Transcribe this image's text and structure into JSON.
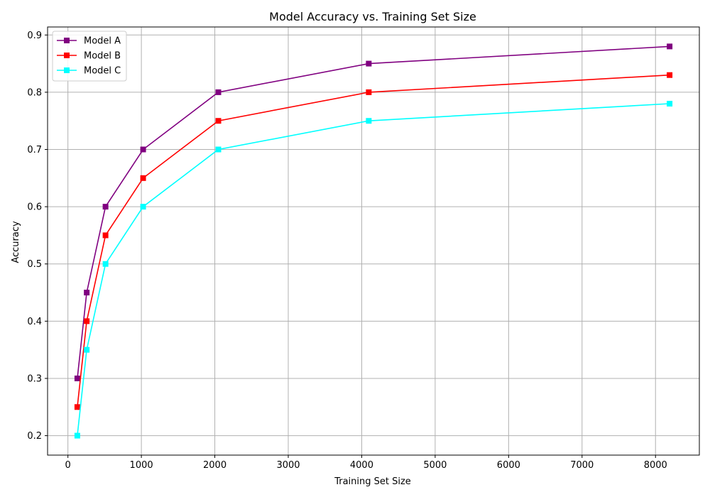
{
  "chart_data": {
    "type": "line",
    "title": "Model Accuracy vs. Training Set Size",
    "xlabel": "Training Set Size",
    "ylabel": "Accuracy",
    "x": [
      128,
      256,
      512,
      1024,
      2048,
      4096,
      8192
    ],
    "series": [
      {
        "name": "Model A",
        "color": "#800080",
        "marker": "square",
        "values": [
          0.3,
          0.45,
          0.6,
          0.7,
          0.8,
          0.85,
          0.88
        ]
      },
      {
        "name": "Model B",
        "color": "#ff0000",
        "marker": "square",
        "values": [
          0.25,
          0.4,
          0.55,
          0.65,
          0.75,
          0.8,
          0.83
        ]
      },
      {
        "name": "Model C",
        "color": "#00ffff",
        "marker": "square",
        "values": [
          0.2,
          0.35,
          0.5,
          0.6,
          0.7,
          0.75,
          0.78
        ]
      }
    ],
    "xlim": [
      -277,
      8597
    ],
    "ylim": [
      0.166,
      0.914
    ],
    "xticks": [
      0,
      1000,
      2000,
      3000,
      4000,
      5000,
      6000,
      7000,
      8000
    ],
    "yticks": [
      0.2,
      0.3,
      0.4,
      0.5,
      0.6,
      0.7,
      0.8,
      0.9
    ],
    "grid": true,
    "legend_position": "top-left"
  }
}
